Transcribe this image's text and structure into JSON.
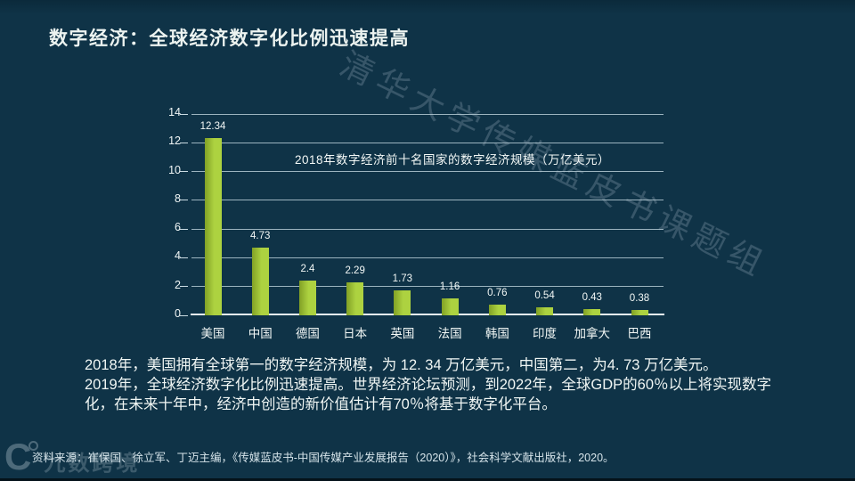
{
  "slide": {
    "title": "数字经济：全球经济数字化比例迅速提高",
    "body_paragraphs": [
      "2018年，美国拥有全球第一的数字经济规模，为 12. 34 万亿美元，中国第二，为4. 73 万亿美元。",
      "2019年，全球经济数字化比例迅速提高。世界经济论坛预测，到2022年，全球GDP的60％以上将实现数字化，在未来十年中，经济中创造的新价值估计有70％将基于数字化平台。"
    ],
    "source": "资料来源：崔保国、徐立军、丁迈主编，《传媒蓝皮书-中国传媒产业发展报告（2020）》，社会科学文献出版社，2020。",
    "watermarks": {
      "diagonal": "清华大学传媒蓝皮书课题组",
      "corner_brand": "九数跨境",
      "corner_logo_glyph": "C"
    }
  },
  "chart_data": {
    "type": "bar",
    "title": "2018年数字经济前十名国家的数字经济规模（万亿美元）",
    "categories": [
      "美国",
      "中国",
      "德国",
      "日本",
      "英国",
      "法国",
      "韩国",
      "印度",
      "加拿大",
      "巴西"
    ],
    "values": [
      12.34,
      4.73,
      2.4,
      2.29,
      1.73,
      1.16,
      0.76,
      0.54,
      0.43,
      0.38
    ],
    "value_labels": [
      "12.34",
      "4.73",
      "2.4",
      "2.29",
      "1.73",
      "1.16",
      "0.76",
      "0.54",
      "0.43",
      "0.38"
    ],
    "xlabel": "",
    "ylabel": "",
    "units": "万亿美元",
    "ylim": [
      0,
      14
    ],
    "yticks": [
      0,
      2,
      4,
      6,
      8,
      10,
      12,
      14
    ],
    "grid": true,
    "legend": false,
    "bar_color": "#a6ce30"
  },
  "colors": {
    "background": "#0f3347",
    "bar": "#a6ce30",
    "text": "#eff5f3",
    "gridline": "#cfe3ec"
  }
}
